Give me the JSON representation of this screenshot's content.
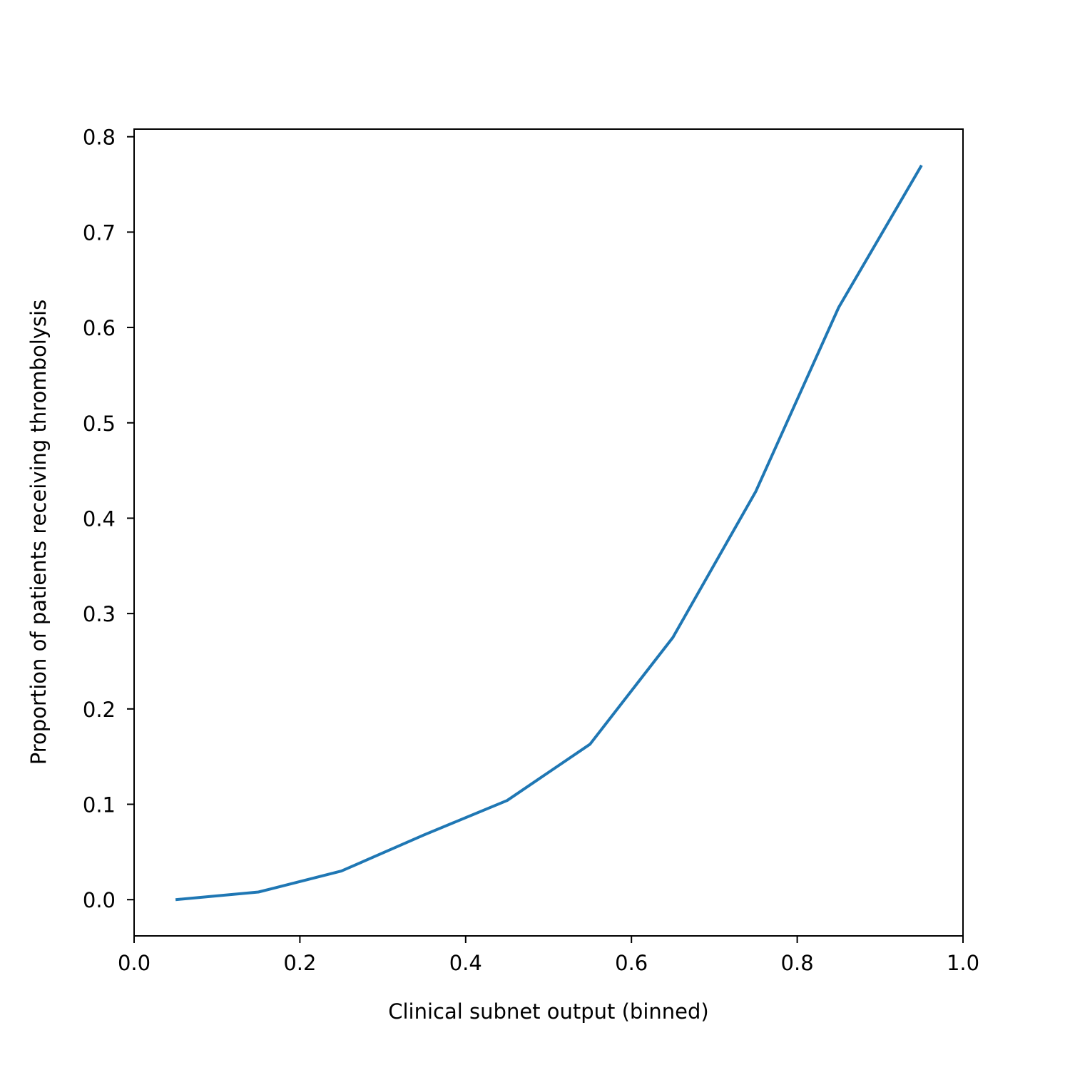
{
  "chart_data": {
    "type": "line",
    "title": "",
    "xlabel": "Clinical subnet output (binned)",
    "ylabel": "Proportion of patients receiving thrombolysis",
    "xlim": [
      0.0,
      1.0
    ],
    "ylim": [
      -0.038,
      0.808
    ],
    "xticks": [
      "0.0",
      "0.2",
      "0.4",
      "0.6",
      "0.8",
      "1.0"
    ],
    "yticks": [
      "0.0",
      "0.1",
      "0.2",
      "0.3",
      "0.4",
      "0.5",
      "0.6",
      "0.7",
      "0.8"
    ],
    "grid": false,
    "legend": "none",
    "series": [
      {
        "color": "#1f77b4",
        "x": [
          0.05,
          0.15,
          0.25,
          0.35,
          0.45,
          0.55,
          0.65,
          0.75,
          0.85,
          0.95
        ],
        "y": [
          0.0,
          0.008,
          0.03,
          0.068,
          0.104,
          0.163,
          0.275,
          0.428,
          0.621,
          0.77
        ]
      }
    ]
  }
}
